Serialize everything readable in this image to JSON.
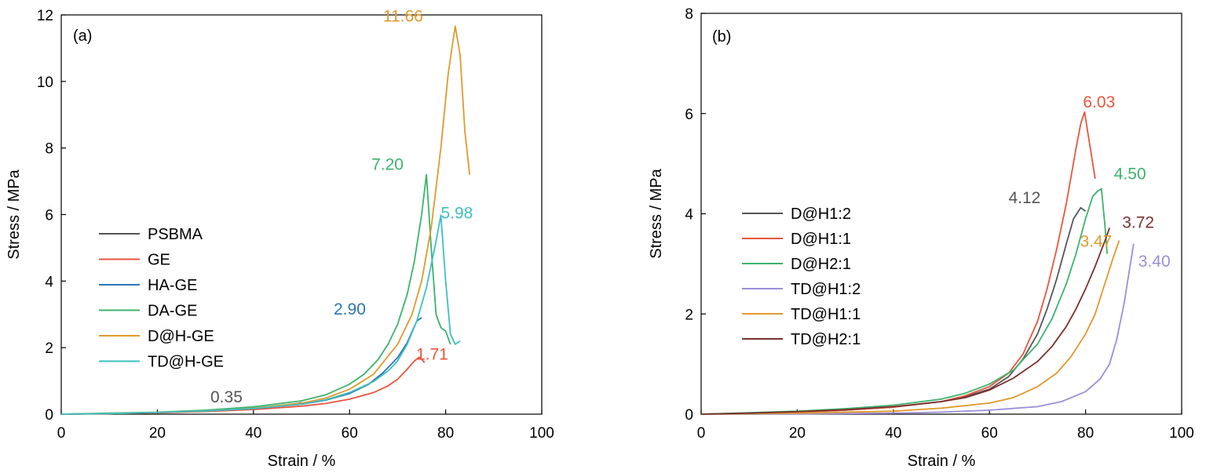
{
  "chart_data": [
    {
      "type": "line",
      "panel_label": "(a)",
      "xlabel": "Strain / %",
      "ylabel": "Stress / MPa",
      "xlim": [
        0,
        100
      ],
      "ylim": [
        0,
        12
      ],
      "xticks": [
        "0",
        "20",
        "40",
        "60",
        "80",
        "100"
      ],
      "yticks": [
        "0",
        "2",
        "4",
        "6",
        "8",
        "10",
        "12"
      ],
      "legend_position": "center-left",
      "series": [
        {
          "name": "PSBMA",
          "color": "#555555",
          "x": [
            0,
            10,
            20,
            30,
            40,
            45,
            49.5,
            50
          ],
          "y": [
            0,
            0.02,
            0.05,
            0.1,
            0.17,
            0.24,
            0.33,
            0.35
          ]
        },
        {
          "name": "GE",
          "color": "#e8553e",
          "x": [
            0,
            10,
            20,
            30,
            40,
            50,
            55,
            60,
            65,
            68,
            70,
            72,
            73.5,
            74.5,
            75,
            75.6
          ],
          "y": [
            0,
            0.02,
            0.04,
            0.08,
            0.14,
            0.24,
            0.32,
            0.45,
            0.65,
            0.85,
            1.05,
            1.35,
            1.6,
            1.71,
            1.65,
            1.55
          ]
        },
        {
          "name": "HA-GE",
          "color": "#2e75b6",
          "x": [
            0,
            10,
            20,
            30,
            40,
            50,
            55,
            60,
            64,
            67,
            70,
            72,
            74,
            75
          ],
          "y": [
            0,
            0.02,
            0.05,
            0.1,
            0.17,
            0.3,
            0.42,
            0.62,
            0.9,
            1.25,
            1.7,
            2.15,
            2.8,
            2.9
          ]
        },
        {
          "name": "DA-GE",
          "color": "#3cb36d",
          "x": [
            0,
            10,
            20,
            30,
            40,
            50,
            55,
            60,
            63,
            66,
            68,
            70,
            72,
            73.5,
            75,
            76,
            77,
            78,
            79,
            80,
            81
          ],
          "y": [
            0,
            0.03,
            0.06,
            0.12,
            0.22,
            0.4,
            0.58,
            0.9,
            1.2,
            1.65,
            2.1,
            2.7,
            3.6,
            4.6,
            6.0,
            7.2,
            5.0,
            3.0,
            2.6,
            2.5,
            2.1
          ]
        },
        {
          "name": "D@H-GE",
          "color": "#e09a2c",
          "x": [
            0,
            10,
            20,
            30,
            40,
            50,
            55,
            60,
            65,
            70,
            73,
            75,
            77,
            79,
            80.5,
            81.5,
            82,
            83,
            84,
            85
          ],
          "y": [
            0,
            0.02,
            0.05,
            0.1,
            0.18,
            0.33,
            0.48,
            0.75,
            1.2,
            2.1,
            3.0,
            4.0,
            5.6,
            8.0,
            10.2,
            11.2,
            11.66,
            10.8,
            8.5,
            7.2
          ]
        },
        {
          "name": "TD@H-GE",
          "color": "#3fbfbf",
          "x": [
            0,
            10,
            20,
            30,
            40,
            50,
            55,
            60,
            65,
            68,
            70,
            72,
            74,
            76,
            78,
            79,
            80,
            81,
            82,
            83
          ],
          "y": [
            0,
            0.02,
            0.05,
            0.1,
            0.17,
            0.3,
            0.43,
            0.65,
            0.98,
            1.3,
            1.6,
            2.1,
            2.8,
            3.8,
            5.2,
            5.98,
            4.0,
            2.4,
            2.1,
            2.2
          ]
        }
      ],
      "annotations": [
        {
          "text": "11.66",
          "x": 82,
          "y": 11.66,
          "color": "#e09a2c"
        },
        {
          "text": "7.20",
          "x": 76,
          "y": 7.2,
          "color": "#3cb36d"
        },
        {
          "text": "5.98",
          "x": 79,
          "y": 5.98,
          "color": "#3fbfbf"
        },
        {
          "text": "2.90",
          "x": 75,
          "y": 2.9,
          "color": "#2e75b6"
        },
        {
          "text": "1.71",
          "x": 74.5,
          "y": 1.71,
          "color": "#e8553e"
        },
        {
          "text": "0.35",
          "x": 50,
          "y": 0.35,
          "color": "#555555"
        }
      ]
    },
    {
      "type": "line",
      "panel_label": "(b)",
      "xlabel": "Strain / %",
      "ylabel": "Stress / MPa",
      "xlim": [
        0,
        100
      ],
      "ylim": [
        0,
        8
      ],
      "xticks": [
        "0",
        "20",
        "40",
        "60",
        "80",
        "100"
      ],
      "yticks": [
        "0",
        "2",
        "4",
        "6",
        "8"
      ],
      "legend_position": "center-left",
      "series": [
        {
          "name": "D@H1:2",
          "color": "#555555",
          "x": [
            0,
            10,
            20,
            30,
            40,
            50,
            55,
            60,
            64,
            67,
            70,
            72,
            74,
            76,
            77.5,
            79,
            80
          ],
          "y": [
            0,
            0.02,
            0.04,
            0.08,
            0.14,
            0.25,
            0.35,
            0.5,
            0.75,
            1.1,
            1.6,
            2.1,
            2.7,
            3.4,
            3.9,
            4.12,
            4.05
          ]
        },
        {
          "name": "D@H1:1",
          "color": "#e8553e",
          "x": [
            0,
            10,
            20,
            30,
            40,
            50,
            55,
            60,
            64,
            67,
            70,
            72,
            74,
            76,
            78,
            79,
            79.8,
            80.5,
            81.5,
            82
          ],
          "y": [
            0,
            0.02,
            0.04,
            0.08,
            0.14,
            0.25,
            0.37,
            0.55,
            0.82,
            1.2,
            1.85,
            2.5,
            3.3,
            4.2,
            5.3,
            5.8,
            6.03,
            5.6,
            5.0,
            4.7
          ]
        },
        {
          "name": "D@H2:1",
          "color": "#3cb36d",
          "x": [
            0,
            10,
            20,
            30,
            40,
            50,
            55,
            60,
            65,
            70,
            73,
            76,
            78,
            80,
            81.5,
            82.5,
            83.3,
            84,
            84.5
          ],
          "y": [
            0,
            0.03,
            0.06,
            0.11,
            0.18,
            0.3,
            0.42,
            0.6,
            0.88,
            1.4,
            1.9,
            2.6,
            3.2,
            3.9,
            4.35,
            4.45,
            4.5,
            3.8,
            3.2
          ]
        },
        {
          "name": "TD@H1:2",
          "color": "#9a8fd8",
          "x": [
            0,
            20,
            40,
            50,
            60,
            70,
            75,
            80,
            83,
            85,
            86.5,
            88,
            89,
            90
          ],
          "y": [
            0,
            0.005,
            0.02,
            0.04,
            0.08,
            0.15,
            0.25,
            0.45,
            0.7,
            1.0,
            1.5,
            2.2,
            2.8,
            3.4
          ]
        },
        {
          "name": "TD@H1:1",
          "color": "#e09a2c",
          "x": [
            0,
            20,
            40,
            50,
            60,
            65,
            70,
            74,
            77,
            80,
            82,
            84,
            85.5,
            87
          ],
          "y": [
            0,
            0.02,
            0.06,
            0.12,
            0.22,
            0.33,
            0.55,
            0.82,
            1.15,
            1.6,
            2.0,
            2.6,
            3.05,
            3.47
          ]
        },
        {
          "name": "TD@H2:1",
          "color": "#7a3030",
          "x": [
            0,
            10,
            20,
            30,
            40,
            50,
            55,
            60,
            65,
            70,
            73,
            76,
            78,
            80,
            82,
            84,
            85
          ],
          "y": [
            0,
            0.02,
            0.05,
            0.09,
            0.15,
            0.25,
            0.33,
            0.48,
            0.72,
            1.05,
            1.35,
            1.75,
            2.1,
            2.5,
            2.95,
            3.45,
            3.72
          ]
        }
      ],
      "annotations": [
        {
          "text": "6.03",
          "x": 79.8,
          "y": 6.03,
          "color": "#e8553e"
        },
        {
          "text": "4.50",
          "x": 83.3,
          "y": 4.5,
          "color": "#3cb36d"
        },
        {
          "text": "4.12",
          "x": 79,
          "y": 4.12,
          "color": "#555555"
        },
        {
          "text": "3.72",
          "x": 85,
          "y": 3.72,
          "color": "#7a3030"
        },
        {
          "text": "3.47",
          "x": 87,
          "y": 3.47,
          "color": "#e09a2c"
        },
        {
          "text": "3.40",
          "x": 90,
          "y": 3.4,
          "color": "#9a8fd8"
        }
      ]
    }
  ]
}
